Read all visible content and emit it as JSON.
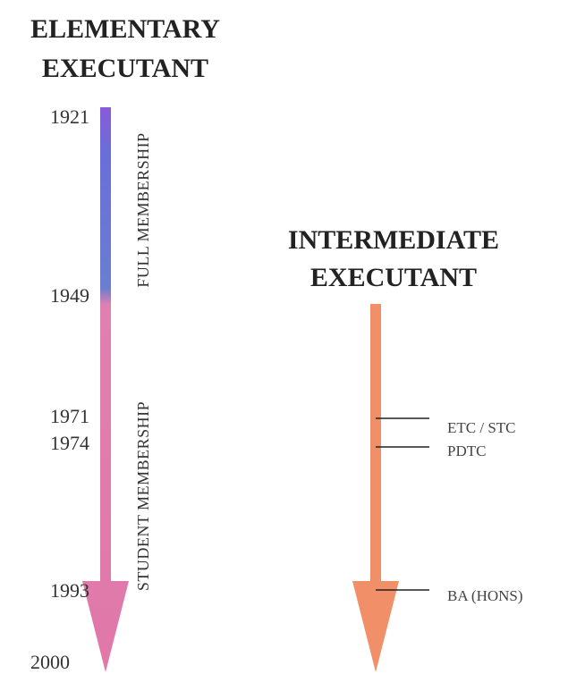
{
  "left": {
    "title": [
      "ELEMENTARY",
      "EXECUTANT"
    ],
    "years": [
      "1921",
      "1949",
      "1971",
      "1974",
      "1993",
      "2000"
    ],
    "periods": [
      "FULL MEMBERSHIP",
      "STUDENT MEMBERSHIP"
    ]
  },
  "right": {
    "title": [
      "INTERMEDIATE",
      "EXECUTANT"
    ],
    "qualifications": [
      "ETC / STC",
      "PDTC",
      "BA (HONS)"
    ]
  }
}
